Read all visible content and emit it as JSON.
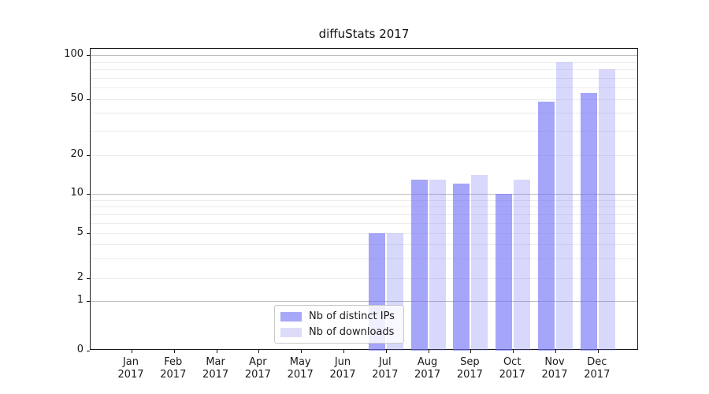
{
  "title": "diffuStats 2017",
  "chart_data": {
    "type": "bar",
    "title": "diffuStats 2017",
    "categories": [
      "Jan",
      "Feb",
      "Mar",
      "Apr",
      "May",
      "Jun",
      "Jul",
      "Aug",
      "Sep",
      "Oct",
      "Nov",
      "Dec"
    ],
    "x_tick_year_line": "2017",
    "series": [
      {
        "name": "Nb of distinct IPs",
        "color_solid": "#a8a8f8",
        "color_rgba": "rgba(110,110,245,0.62)",
        "values": [
          0,
          0,
          0,
          0,
          0,
          0,
          5,
          13,
          12,
          10,
          48,
          55
        ]
      },
      {
        "name": "Nb of downloads",
        "color_solid": "#dcdcf9",
        "color_rgba": "rgba(110,110,245,0.27)",
        "values": [
          0,
          0,
          0,
          0,
          0,
          0,
          5,
          13,
          14,
          13,
          90,
          80
        ]
      }
    ],
    "yscale": "log-like (0, then logarithmic 1-100)",
    "ytick_labels": [
      "100",
      "50",
      "20",
      "10",
      "5",
      "2",
      "1",
      "0"
    ],
    "ytick_values": [
      100,
      50,
      20,
      10,
      5,
      2,
      1,
      0
    ],
    "minor_grid_values": [
      2,
      3,
      4,
      5,
      6,
      7,
      8,
      9,
      20,
      30,
      40,
      50,
      60,
      70,
      80,
      90
    ],
    "major_grid_values": [
      1,
      10,
      100
    ],
    "ylim": [
      0,
      110
    ],
    "xlabel": "",
    "ylabel": "",
    "grid": "horizontal major+minor",
    "legend_position": "lower center"
  },
  "colors": {
    "background": "#ffffff",
    "spine": "#1a1a1a",
    "grid_minor": "#ececec",
    "grid_major": "#bdbdbd",
    "text": "#1a1a1a",
    "bar_dark": "#a8a8f8",
    "bar_light": "#dcdcf9",
    "legend_border": "#c9c9c9"
  }
}
